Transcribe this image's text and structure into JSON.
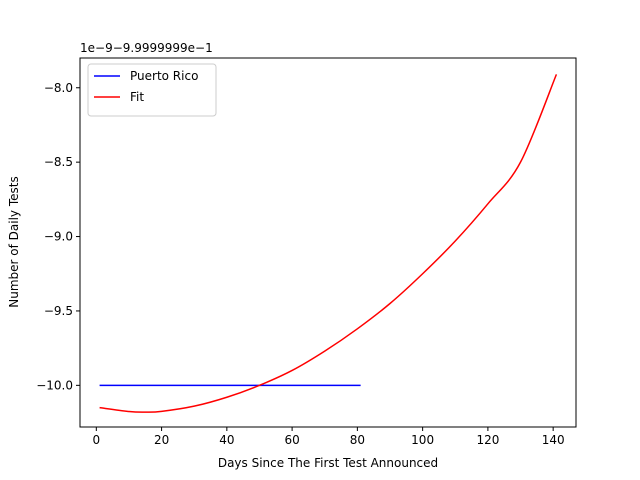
{
  "chart_data": {
    "type": "line",
    "title": "",
    "xlabel": "Days Since The First Test Announced",
    "ylabel": "Number of Daily Tests",
    "offset_text": "1e−9−9.9999999e−1",
    "xlim": [
      -5,
      147
    ],
    "ylim": [
      -10.28,
      -7.8
    ],
    "x_ticks": [
      0,
      20,
      40,
      60,
      80,
      100,
      120,
      140
    ],
    "x_tick_labels": [
      "0",
      "20",
      "40",
      "60",
      "80",
      "100",
      "120",
      "140"
    ],
    "y_ticks": [
      -10.0,
      -9.5,
      -9.0,
      -8.5,
      -8.0
    ],
    "y_tick_labels": [
      "−10.0",
      "−9.5",
      "−9.0",
      "−8.5",
      "−8.0"
    ],
    "grid": false,
    "legend_position": "top-left",
    "series": [
      {
        "name": "Puerto Rico",
        "color": "#0000ff",
        "x": [
          1,
          81
        ],
        "y": [
          -10.0,
          -10.0
        ]
      },
      {
        "name": "Fit",
        "color": "#ff0000",
        "x": [
          1,
          10,
          15,
          20,
          30,
          40,
          50,
          60,
          70,
          80,
          90,
          100,
          110,
          120,
          130,
          141
        ],
        "y": [
          -10.15,
          -10.176,
          -10.18,
          -10.175,
          -10.14,
          -10.08,
          -10.0,
          -9.9,
          -9.77,
          -9.62,
          -9.45,
          -9.25,
          -9.03,
          -8.78,
          -8.5,
          -7.91
        ]
      }
    ]
  }
}
